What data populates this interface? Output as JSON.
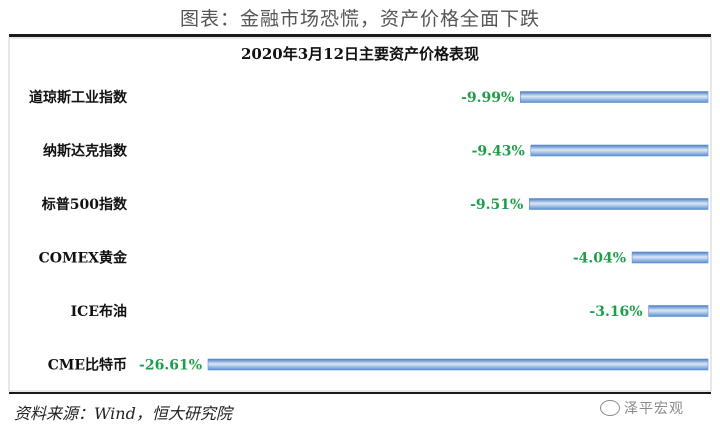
{
  "header": {
    "title": "图表：金融市场恐慌，资产价格全面下跌"
  },
  "footer": {
    "source": "资料来源：Wind，恒大研究院",
    "watermark": "泽平宏观"
  },
  "colors": {
    "bar": "#5b8fd0",
    "bar_highlight": "#dbe8f7",
    "value_text": "#1e9e4a"
  },
  "chart_data": {
    "type": "bar",
    "orientation": "horizontal",
    "title": "2020年3月12日主要资产价格表现",
    "categories": [
      "道琼斯工业指数",
      "纳斯达克指数",
      "标普500指数",
      "COMEX黄金",
      "ICE布油",
      "CME比特币"
    ],
    "values": [
      -9.99,
      -9.43,
      -9.51,
      -4.04,
      -3.16,
      -26.61
    ],
    "value_labels": [
      "-9.99%",
      "-9.43%",
      "-9.51%",
      "-4.04%",
      "-3.16%",
      "-26.61%"
    ],
    "xlim": [
      -26.61,
      0
    ],
    "grid": false,
    "legend": "none"
  }
}
